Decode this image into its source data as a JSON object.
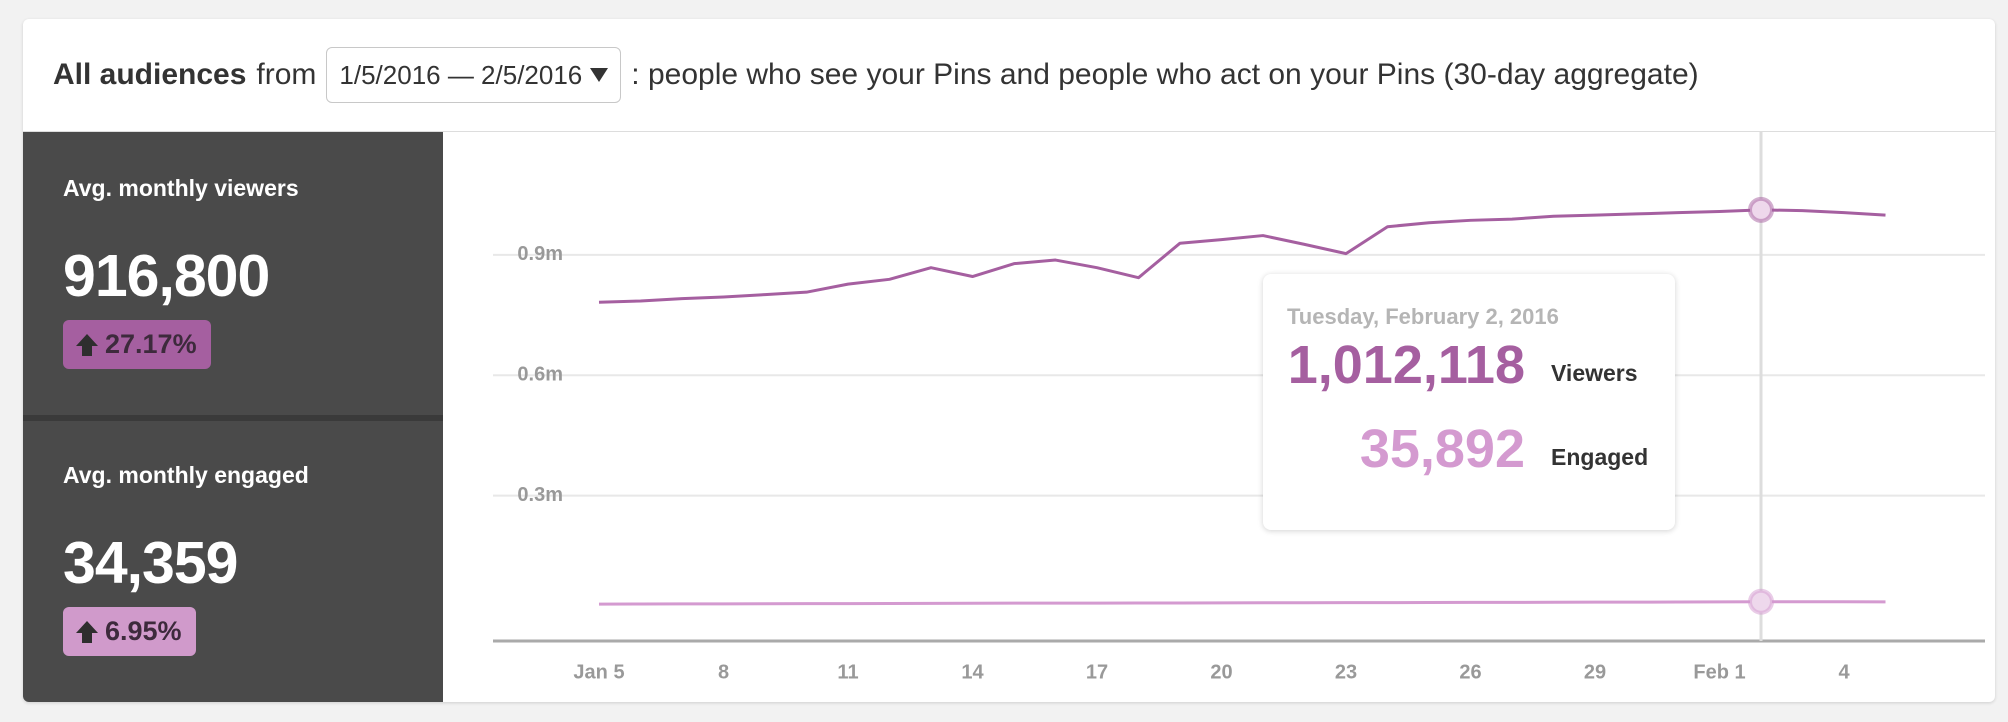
{
  "header": {
    "title": "All audiences",
    "from": "from",
    "date_range": "1/5/2016 — 2/5/2016",
    "description": ": people who see your Pins and people who act on your Pins (30-day aggregate)"
  },
  "summary": [
    {
      "label": "Avg. monthly viewers",
      "value": "916,800",
      "change": "27.17%"
    },
    {
      "label": "Avg. monthly engaged",
      "value": "34,359",
      "change": "6.95%"
    }
  ],
  "chart_data": {
    "type": "line",
    "categories": [
      "Jan 5",
      null,
      null,
      "8",
      null,
      null,
      "11",
      null,
      null,
      "14",
      null,
      null,
      "17",
      null,
      null,
      "20",
      null,
      null,
      "23",
      null,
      null,
      "26",
      null,
      null,
      "29",
      null,
      null,
      "Feb 1",
      null,
      null,
      "4",
      null
    ],
    "series": [
      {
        "name": "Viewers",
        "color": "#a55fa0",
        "values": [
          782000,
          785000,
          791000,
          795000,
          801000,
          807000,
          827000,
          839000,
          868000,
          846000,
          878000,
          887000,
          868000,
          843000,
          929000,
          938000,
          948000,
          926000,
          903000,
          970000,
          980000,
          986000,
          989000,
          996000,
          999000,
          1002000,
          1005000,
          1008000,
          1012118,
          1010000,
          1005000,
          999000
        ]
      },
      {
        "name": "Engaged",
        "color": "#d49ad0",
        "values": [
          30000,
          30200,
          30400,
          30600,
          30800,
          31000,
          31200,
          31500,
          31800,
          32000,
          32200,
          32400,
          32500,
          32600,
          32800,
          33000,
          33200,
          33400,
          33500,
          33700,
          33900,
          34100,
          34300,
          34500,
          34700,
          34900,
          35100,
          35400,
          35892,
          35800,
          35700,
          35600
        ]
      }
    ],
    "ylim": [
      -62000,
      1206000
    ],
    "yticks": [
      {
        "value": 300000,
        "label": "0.3m"
      },
      {
        "value": 600000,
        "label": "0.6m"
      },
      {
        "value": 900000,
        "label": "0.9m"
      }
    ],
    "grid": true,
    "highlight_index": 28,
    "tooltip": {
      "date": "Tuesday, February 2, 2016",
      "values": [
        "1,012,118",
        "35,892"
      ]
    }
  }
}
